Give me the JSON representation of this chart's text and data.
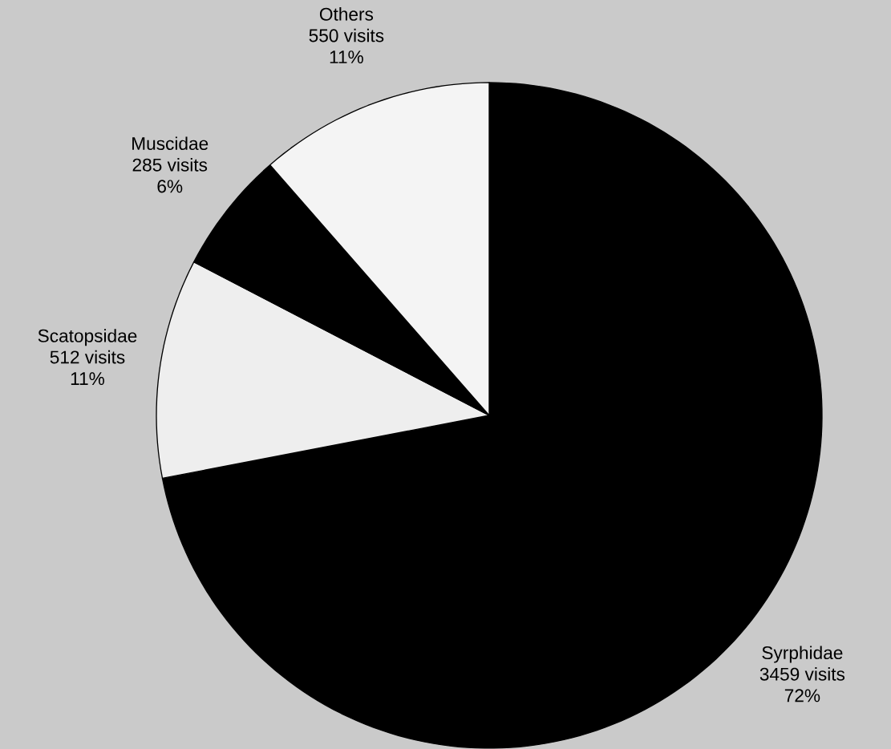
{
  "chart_data": {
    "type": "pie",
    "categories": [
      "Syrphidae",
      "Scatopsidae",
      "Muscidae",
      "Others"
    ],
    "values": [
      3459,
      512,
      285,
      550
    ],
    "colors": [
      "#000000",
      "#eeeeee",
      "#000000",
      "#f4f4f4"
    ],
    "value_labels": [
      "3459 visits",
      "512 visits",
      "285 visits",
      "550 visits"
    ],
    "annotations": [
      "72%",
      "11%",
      "6%",
      "11%"
    ]
  }
}
